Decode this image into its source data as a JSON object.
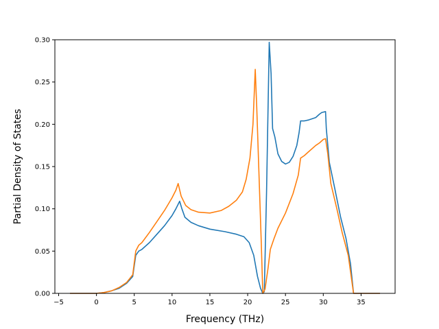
{
  "chart_data": {
    "type": "line",
    "title": "",
    "xlabel": "Frequency (THz)",
    "ylabel": "Partial Density of States",
    "xlim": [
      -5.5,
      39.5
    ],
    "ylim": [
      0.0,
      0.3
    ],
    "xticks": [
      -5,
      0,
      5,
      10,
      15,
      20,
      25,
      30,
      35
    ],
    "xtick_labels": [
      "−5",
      "0",
      "5",
      "10",
      "15",
      "20",
      "25",
      "30",
      "35"
    ],
    "yticks": [
      0.0,
      0.05,
      0.1,
      0.15,
      0.2,
      0.25,
      0.3
    ],
    "ytick_labels": [
      "0.00",
      "0.05",
      "0.10",
      "0.15",
      "0.20",
      "0.25",
      "0.30"
    ],
    "grid": false,
    "legend": "none",
    "series": [
      {
        "color": "#1f77b4",
        "points": [
          [
            -3.5,
            0.0
          ],
          [
            0.0,
            0.0
          ],
          [
            1.0,
            0.001
          ],
          [
            2.0,
            0.003
          ],
          [
            3.0,
            0.006
          ],
          [
            4.0,
            0.012
          ],
          [
            4.8,
            0.02
          ],
          [
            5.2,
            0.045
          ],
          [
            5.6,
            0.05
          ],
          [
            6.0,
            0.052
          ],
          [
            7.0,
            0.06
          ],
          [
            8.0,
            0.07
          ],
          [
            9.0,
            0.08
          ],
          [
            10.0,
            0.092
          ],
          [
            10.5,
            0.1
          ],
          [
            11.0,
            0.109
          ],
          [
            11.3,
            0.1
          ],
          [
            11.7,
            0.09
          ],
          [
            12.5,
            0.084
          ],
          [
            13.5,
            0.08
          ],
          [
            15.0,
            0.076
          ],
          [
            17.0,
            0.073
          ],
          [
            18.5,
            0.07
          ],
          [
            19.5,
            0.067
          ],
          [
            20.2,
            0.06
          ],
          [
            20.8,
            0.045
          ],
          [
            21.3,
            0.02
          ],
          [
            21.7,
            0.006
          ],
          [
            22.0,
            0.0
          ],
          [
            22.2,
            0.002
          ],
          [
            22.5,
            0.12
          ],
          [
            22.85,
            0.297
          ],
          [
            23.1,
            0.26
          ],
          [
            23.3,
            0.195
          ],
          [
            23.6,
            0.185
          ],
          [
            24.0,
            0.165
          ],
          [
            24.5,
            0.156
          ],
          [
            25.0,
            0.153
          ],
          [
            25.5,
            0.155
          ],
          [
            26.0,
            0.162
          ],
          [
            26.5,
            0.175
          ],
          [
            26.8,
            0.19
          ],
          [
            27.0,
            0.204
          ],
          [
            27.5,
            0.204
          ],
          [
            28.0,
            0.205
          ],
          [
            29.0,
            0.208
          ],
          [
            29.5,
            0.212
          ],
          [
            29.8,
            0.214
          ],
          [
            30.3,
            0.215
          ],
          [
            30.4,
            0.195
          ],
          [
            30.8,
            0.155
          ],
          [
            31.5,
            0.125
          ],
          [
            32.3,
            0.09
          ],
          [
            33.0,
            0.065
          ],
          [
            33.6,
            0.035
          ],
          [
            34.0,
            0.0
          ],
          [
            37.5,
            0.0
          ]
        ]
      },
      {
        "color": "#ff7f0e",
        "points": [
          [
            -3.5,
            0.0
          ],
          [
            0.0,
            0.0
          ],
          [
            1.0,
            0.001
          ],
          [
            2.0,
            0.003
          ],
          [
            3.0,
            0.007
          ],
          [
            4.0,
            0.013
          ],
          [
            4.8,
            0.022
          ],
          [
            5.2,
            0.05
          ],
          [
            5.6,
            0.057
          ],
          [
            6.0,
            0.06
          ],
          [
            7.0,
            0.072
          ],
          [
            8.0,
            0.085
          ],
          [
            9.0,
            0.098
          ],
          [
            10.0,
            0.113
          ],
          [
            10.5,
            0.122
          ],
          [
            10.8,
            0.13
          ],
          [
            11.2,
            0.115
          ],
          [
            11.8,
            0.104
          ],
          [
            12.5,
            0.099
          ],
          [
            13.5,
            0.096
          ],
          [
            15.0,
            0.095
          ],
          [
            16.5,
            0.098
          ],
          [
            17.5,
            0.103
          ],
          [
            18.5,
            0.11
          ],
          [
            19.3,
            0.12
          ],
          [
            19.8,
            0.135
          ],
          [
            20.3,
            0.16
          ],
          [
            20.7,
            0.2
          ],
          [
            21.0,
            0.265
          ],
          [
            21.2,
            0.22
          ],
          [
            21.5,
            0.14
          ],
          [
            21.8,
            0.06
          ],
          [
            22.0,
            0.0
          ],
          [
            22.3,
            0.005
          ],
          [
            22.7,
            0.03
          ],
          [
            23.0,
            0.052
          ],
          [
            23.5,
            0.065
          ],
          [
            24.0,
            0.077
          ],
          [
            25.0,
            0.095
          ],
          [
            26.0,
            0.118
          ],
          [
            26.7,
            0.14
          ],
          [
            27.0,
            0.16
          ],
          [
            27.5,
            0.163
          ],
          [
            28.0,
            0.167
          ],
          [
            29.0,
            0.175
          ],
          [
            29.5,
            0.178
          ],
          [
            30.0,
            0.182
          ],
          [
            30.3,
            0.183
          ],
          [
            30.6,
            0.165
          ],
          [
            31.0,
            0.13
          ],
          [
            31.8,
            0.1
          ],
          [
            32.5,
            0.072
          ],
          [
            33.3,
            0.045
          ],
          [
            34.0,
            0.0
          ],
          [
            37.5,
            0.0
          ]
        ]
      }
    ]
  }
}
